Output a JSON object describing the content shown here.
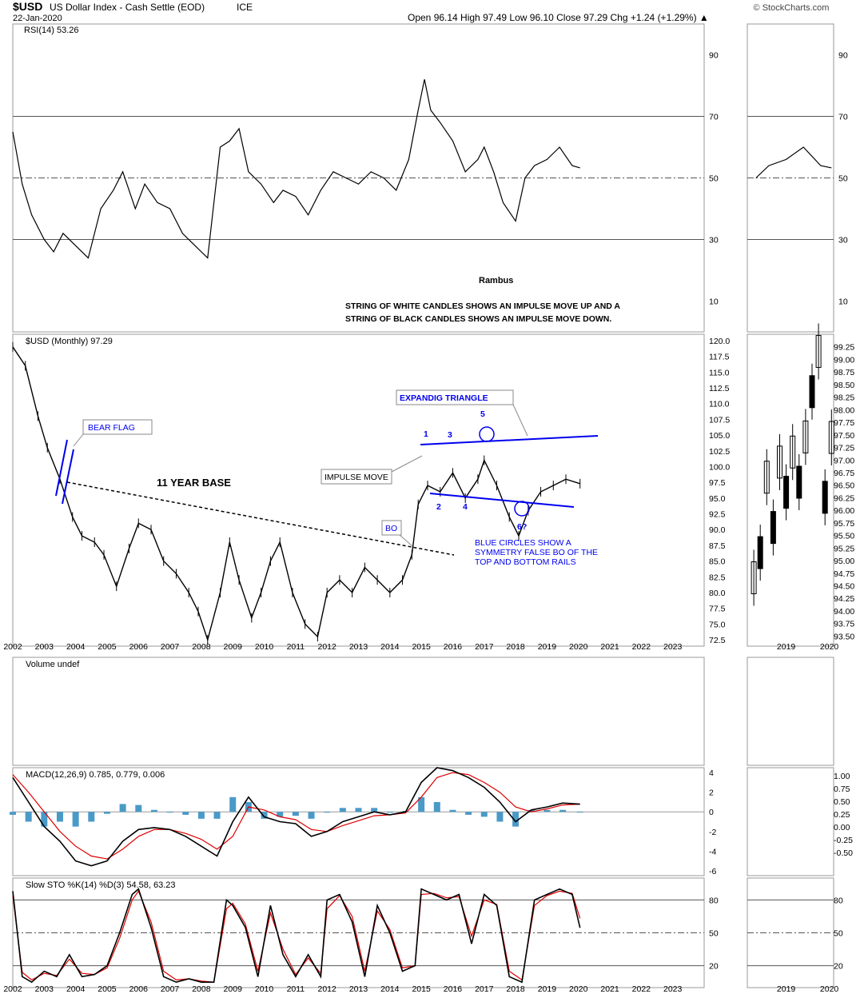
{
  "header": {
    "symbol": "$USD",
    "name": "US Dollar Index - Cash Settle (EOD)",
    "exchange": "ICE",
    "date": "22-Jan-2020",
    "quote": "Open 96.14  High 97.49  Low 96.10  Close 97.29  Chg +1.24 (+1.29%) ▲",
    "watermark": "© StockCharts.com"
  },
  "colors": {
    "price_line": "#000000",
    "annotation_blue": "#0000ee",
    "macd_line": "#000000",
    "signal_line": "#dd0000",
    "histogram": "#4a9ac8",
    "rsi_overbought_fill": "#5a8a5a",
    "rsi_oversold_fill": "#9a6a60",
    "stoch_k": "#000000",
    "stoch_d": "#dd0000"
  },
  "chart_data": [
    {
      "type": "line",
      "panel": "rsi",
      "title": "RSI(14) 53.26",
      "yticks": [
        90,
        70,
        50,
        30,
        10
      ],
      "ylim": [
        0,
        100
      ],
      "reference_lines": [
        70,
        50,
        30
      ],
      "series": [
        {
          "name": "RSI(14)",
          "x": [
            2002.0,
            2002.3,
            2002.6,
            2003.0,
            2003.3,
            2003.6,
            2004.0,
            2004.4,
            2004.8,
            2005.2,
            2005.5,
            2005.9,
            2006.2,
            2006.6,
            2007.0,
            2007.4,
            2007.8,
            2008.2,
            2008.6,
            2008.9,
            2009.2,
            2009.5,
            2009.9,
            2010.3,
            2010.6,
            2011.0,
            2011.4,
            2011.8,
            2012.2,
            2012.6,
            2013.0,
            2013.4,
            2013.8,
            2014.2,
            2014.6,
            2014.9,
            2015.1,
            2015.3,
            2015.6,
            2016.0,
            2016.4,
            2016.8,
            2017.0,
            2017.3,
            2017.6,
            2018.0,
            2018.3,
            2018.6,
            2019.0,
            2019.4,
            2019.8,
            2020.05
          ],
          "y": [
            65,
            48,
            38,
            30,
            26,
            32,
            28,
            24,
            40,
            46,
            52,
            40,
            48,
            42,
            40,
            32,
            28,
            24,
            60,
            62,
            66,
            52,
            48,
            42,
            46,
            44,
            38,
            46,
            52,
            50,
            48,
            52,
            50,
            46,
            56,
            72,
            82,
            72,
            68,
            62,
            52,
            56,
            60,
            52,
            42,
            36,
            50,
            54,
            56,
            60,
            54,
            53.26
          ]
        }
      ]
    },
    {
      "type": "bar",
      "panel": "price",
      "title": "$USD (Monthly) 97.29",
      "ylim": [
        71.5,
        121
      ],
      "yticks": [
        120.0,
        117.5,
        115.0,
        112.5,
        110.0,
        107.5,
        105.0,
        102.5,
        100.0,
        97.5,
        95.0,
        92.5,
        90.0,
        87.5,
        85.0,
        82.5,
        80.0,
        77.5,
        75.0,
        72.5
      ],
      "xticks": [
        "2002",
        "2003",
        "2004",
        "2005",
        "2006",
        "2007",
        "2008",
        "2009",
        "2010",
        "2011",
        "2012",
        "2013",
        "2014",
        "2015",
        "2016",
        "2017",
        "2018",
        "2019",
        "2020",
        "2021",
        "2022",
        "2023"
      ],
      "series": [
        {
          "name": "$USD",
          "x": [
            2002.0,
            2002.4,
            2002.8,
            2003.1,
            2003.5,
            2003.9,
            2004.2,
            2004.6,
            2004.9,
            2005.3,
            2005.7,
            2006.0,
            2006.4,
            2006.8,
            2007.2,
            2007.6,
            2007.9,
            2008.2,
            2008.6,
            2008.9,
            2009.2,
            2009.6,
            2009.9,
            2010.2,
            2010.5,
            2010.9,
            2011.3,
            2011.7,
            2012.0,
            2012.4,
            2012.8,
            2013.2,
            2013.6,
            2014.0,
            2014.4,
            2014.7,
            2014.9,
            2015.2,
            2015.6,
            2016.0,
            2016.4,
            2016.8,
            2017.0,
            2017.4,
            2017.8,
            2018.1,
            2018.4,
            2018.8,
            2019.2,
            2019.6,
            2020.05
          ],
          "y": [
            119,
            116,
            108,
            103,
            98,
            92,
            89,
            88,
            86,
            81,
            87,
            91,
            90,
            85,
            83,
            80,
            77,
            72.5,
            80,
            88,
            82,
            76,
            80,
            85,
            88,
            80,
            75,
            73,
            80,
            82,
            80,
            84,
            82,
            80,
            82,
            86,
            94,
            97,
            96,
            99,
            95,
            98,
            101,
            97,
            92,
            89,
            93,
            96,
            97,
            98,
            97.29
          ]
        }
      ],
      "annotations": [
        {
          "label": "BEAR FLAG",
          "style": "boxed"
        },
        {
          "label": "11 YEAR BASE",
          "style": "bold"
        },
        {
          "label": "IMPULSE MOVE",
          "style": "boxed"
        },
        {
          "label": "BO",
          "style": "boxed"
        },
        {
          "label": "EXPANDIG TRIANGLE",
          "style": "boxed"
        },
        {
          "points": [
            "1",
            "2",
            "3",
            "4",
            "5",
            "6?"
          ]
        },
        {
          "text": "BLUE CIRCLES SHOW A SYMMETRY FALSE BO OF THE TOP AND BOTTOM RAILS"
        }
      ]
    },
    {
      "type": "bar",
      "panel": "volume",
      "title": "Volume undef"
    },
    {
      "type": "line",
      "panel": "macd",
      "title": "MACD(12,26,9) 0.785, 0.779, 0.006",
      "yticks": [
        4,
        2,
        0,
        -2,
        -4,
        -6
      ],
      "ylim": [
        -6.5,
        4.5
      ],
      "series": [
        {
          "name": "MACD",
          "x": [
            2002.0,
            2002.5,
            2003.0,
            2003.5,
            2004.0,
            2004.5,
            2005.0,
            2005.5,
            2006.0,
            2006.5,
            2007.0,
            2007.5,
            2008.0,
            2008.5,
            2009.0,
            2009.5,
            2010.0,
            2010.5,
            2011.0,
            2011.5,
            2012.0,
            2012.5,
            2013.0,
            2013.5,
            2014.0,
            2014.5,
            2015.0,
            2015.5,
            2016.0,
            2016.5,
            2017.0,
            2017.5,
            2018.0,
            2018.5,
            2019.0,
            2019.5,
            2020.05
          ],
          "y": [
            3.5,
            1,
            -1.5,
            -3,
            -5,
            -5.5,
            -5,
            -3,
            -1.8,
            -1.6,
            -1.8,
            -2.5,
            -3.5,
            -4.5,
            -1,
            1.5,
            -0.5,
            -1,
            -1.2,
            -2.5,
            -2,
            -1,
            -0.5,
            0,
            -0.3,
            0,
            3,
            4.5,
            4.2,
            3.5,
            2.5,
            1,
            -1,
            0.2,
            0.5,
            0.9,
            0.785
          ]
        },
        {
          "name": "Signal",
          "x": [
            2002.0,
            2002.5,
            2003.0,
            2003.5,
            2004.0,
            2004.5,
            2005.0,
            2005.5,
            2006.0,
            2006.5,
            2007.0,
            2007.5,
            2008.0,
            2008.5,
            2009.0,
            2009.5,
            2010.0,
            2010.5,
            2011.0,
            2011.5,
            2012.0,
            2012.5,
            2013.0,
            2013.5,
            2014.0,
            2014.5,
            2015.0,
            2015.5,
            2016.0,
            2016.5,
            2017.0,
            2017.5,
            2018.0,
            2018.5,
            2019.0,
            2019.5,
            2020.05
          ],
          "y": [
            3.8,
            2,
            0,
            -2,
            -3.5,
            -4.5,
            -4.8,
            -3.8,
            -2.5,
            -1.8,
            -1.8,
            -2.2,
            -2.8,
            -3.8,
            -2.5,
            0.5,
            0.2,
            -0.5,
            -0.8,
            -1.8,
            -2,
            -1.4,
            -0.9,
            -0.4,
            -0.3,
            -0.1,
            1.5,
            3.5,
            4,
            3.8,
            3,
            2,
            0.5,
            0,
            0.3,
            0.7,
            0.779
          ]
        },
        {
          "name": "Histogram",
          "x": [
            2002.0,
            2002.5,
            2003.0,
            2003.5,
            2004.0,
            2004.5,
            2005.0,
            2005.5,
            2006.0,
            2006.5,
            2007.0,
            2007.5,
            2008.0,
            2008.5,
            2009.0,
            2009.5,
            2010.0,
            2010.5,
            2011.0,
            2011.5,
            2012.0,
            2012.5,
            2013.0,
            2013.5,
            2014.0,
            2014.5,
            2015.0,
            2015.5,
            2016.0,
            2016.5,
            2017.0,
            2017.5,
            2018.0,
            2018.5,
            2019.0,
            2019.5,
            2020.05
          ],
          "y": [
            -0.3,
            -1,
            -1.5,
            -1,
            -1.5,
            -1,
            -0.2,
            0.8,
            0.7,
            0.2,
            0,
            -0.3,
            -0.7,
            -0.7,
            1.5,
            1,
            -0.7,
            -0.5,
            -0.4,
            -0.7,
            0,
            0.4,
            0.4,
            0.4,
            0,
            0.1,
            1.5,
            1,
            0.2,
            -0.3,
            -0.5,
            -1,
            -1.5,
            0.2,
            0.2,
            0.2,
            0.006
          ]
        }
      ]
    },
    {
      "type": "line",
      "panel": "stochastic",
      "title": "Slow STO %K(14) %D(3) 54.58, 63.23",
      "yticks": [
        80,
        50,
        20
      ],
      "ylim": [
        0,
        100
      ],
      "reference_lines": [
        80,
        50,
        20
      ],
      "series": [
        {
          "name": "%K",
          "x": [
            2002.0,
            2002.3,
            2002.6,
            2003.0,
            2003.4,
            2003.8,
            2004.2,
            2004.6,
            2005.0,
            2005.4,
            2005.8,
            2006.0,
            2006.4,
            2006.8,
            2007.2,
            2007.6,
            2008.0,
            2008.4,
            2008.8,
            2009.0,
            2009.4,
            2009.8,
            2010.2,
            2010.6,
            2011.0,
            2011.4,
            2011.8,
            2012.0,
            2012.4,
            2012.8,
            2013.2,
            2013.6,
            2014.0,
            2014.4,
            2014.8,
            2015.0,
            2015.4,
            2015.8,
            2016.2,
            2016.6,
            2017.0,
            2017.4,
            2017.8,
            2018.2,
            2018.6,
            2019.0,
            2019.4,
            2019.8,
            2020.05
          ],
          "y": [
            88,
            10,
            5,
            15,
            10,
            30,
            10,
            12,
            20,
            50,
            85,
            90,
            55,
            10,
            5,
            8,
            5,
            5,
            80,
            75,
            55,
            10,
            75,
            30,
            10,
            30,
            10,
            80,
            85,
            60,
            10,
            75,
            50,
            15,
            20,
            90,
            85,
            80,
            85,
            40,
            85,
            75,
            10,
            5,
            80,
            85,
            90,
            85,
            54.58
          ]
        },
        {
          "name": "%D",
          "x": [
            2002.0,
            2002.3,
            2002.6,
            2003.0,
            2003.4,
            2003.8,
            2004.2,
            2004.6,
            2005.0,
            2005.4,
            2005.8,
            2006.0,
            2006.4,
            2006.8,
            2007.2,
            2007.6,
            2008.0,
            2008.4,
            2008.8,
            2009.0,
            2009.4,
            2009.8,
            2010.2,
            2010.6,
            2011.0,
            2011.4,
            2011.8,
            2012.0,
            2012.4,
            2012.8,
            2013.2,
            2013.6,
            2014.0,
            2014.4,
            2014.8,
            2015.0,
            2015.4,
            2015.8,
            2016.2,
            2016.6,
            2017.0,
            2017.4,
            2017.8,
            2018.2,
            2018.6,
            2019.0,
            2019.4,
            2019.8,
            2020.05
          ],
          "y": [
            84,
            14,
            7,
            13,
            11,
            26,
            13,
            12,
            18,
            45,
            80,
            88,
            60,
            15,
            7,
            8,
            6,
            5,
            72,
            77,
            58,
            15,
            68,
            35,
            12,
            27,
            13,
            72,
            84,
            65,
            15,
            70,
            53,
            18,
            20,
            85,
            86,
            82,
            83,
            47,
            80,
            76,
            15,
            7,
            75,
            84,
            88,
            86,
            63.23
          ]
        }
      ]
    },
    {
      "type": "line",
      "panel": "inset-price",
      "yticks": [
        99.25,
        99.0,
        98.75,
        98.5,
        98.25,
        98.0,
        97.75,
        97.5,
        97.25,
        97.0,
        96.75,
        96.5,
        96.25,
        96.0,
        95.75,
        95.5,
        95.25,
        95.0,
        94.75,
        94.5,
        94.25,
        94.0,
        93.75,
        93.5
      ],
      "xticks": [
        "2019",
        "2020"
      ],
      "ylim": [
        93.3,
        99.5
      ],
      "series": [
        {
          "name": "$USD",
          "x": [
            2018.25,
            2018.4,
            2018.55,
            2018.7,
            2018.85,
            2019.0,
            2019.15,
            2019.3,
            2019.45,
            2019.6,
            2019.75,
            2019.9,
            2020.05
          ],
          "y": [
            94.5,
            95.0,
            96.5,
            95.5,
            96.8,
            96.2,
            97.0,
            96.4,
            97.3,
            98.2,
            99.0,
            96.1,
            97.29
          ]
        }
      ]
    }
  ],
  "notes": {
    "author": "Rambus",
    "line1": "STRING OF WHITE CANDLES SHOWS AN IMPULSE MOVE UP AND A",
    "line2": "STRING OF BLACK CANDLES SHOWS AN IMPULSE MOVE DOWN.",
    "symmetry_text_1": "BLUE CIRCLES SHOW A",
    "symmetry_text_2": "SYMMETRY FALSE BO OF THE",
    "symmetry_text_3": "TOP AND BOTTOM RAILS",
    "inset_macd_ticks": [
      "1.00",
      "0.75",
      "0.50",
      "0.25",
      "0.00",
      "-0.25",
      "-0.50"
    ],
    "inset_sto_ticks": [
      "80",
      "50",
      "20"
    ]
  }
}
